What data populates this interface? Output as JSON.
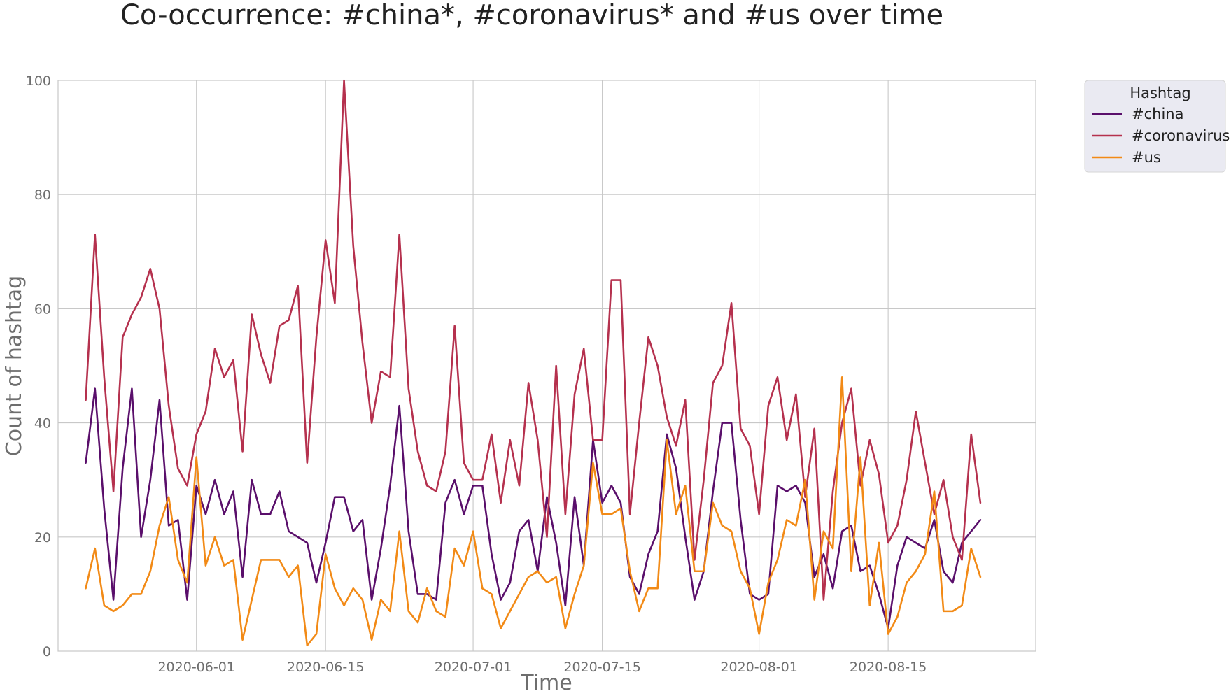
{
  "chart_data": {
    "type": "line",
    "title": "Co-occurrence: #china*, #coronavirus* and #us over time",
    "xlabel": "Time",
    "ylabel": "Count of hashtag",
    "x_start": "2020-05-20",
    "x_step_days": 1,
    "xlim": [
      "2020-05-17",
      "2020-08-31"
    ],
    "ylim": [
      0,
      100
    ],
    "xticks": [
      "2020-06-01",
      "2020-06-15",
      "2020-07-01",
      "2020-07-15",
      "2020-08-01",
      "2020-08-15"
    ],
    "yticks": [
      0,
      20,
      40,
      60,
      80,
      100
    ],
    "grid": true,
    "legend": {
      "title": "Hashtag",
      "placement": "outside top-right"
    },
    "series": [
      {
        "name": "#china",
        "color": "#5a0f6b",
        "values": [
          33,
          46,
          25,
          9,
          32,
          46,
          20,
          30,
          44,
          22,
          23,
          9,
          29,
          24,
          30,
          24,
          28,
          13,
          30,
          24,
          24,
          28,
          21,
          20,
          19,
          12,
          19,
          27,
          27,
          21,
          23,
          9,
          18,
          29,
          43,
          21,
          10,
          10,
          9,
          26,
          30,
          24,
          29,
          29,
          17,
          9,
          12,
          21,
          23,
          14,
          27,
          19,
          8,
          27,
          15,
          37,
          26,
          29,
          26,
          13,
          10,
          17,
          21,
          38,
          32,
          20,
          9,
          14,
          28,
          40,
          40,
          23,
          10,
          9,
          10,
          29,
          28,
          29,
          26,
          13,
          17,
          11,
          21,
          22,
          14,
          15,
          10,
          4,
          15,
          20,
          19,
          18,
          23,
          14,
          12,
          19,
          21,
          23
        ]
      },
      {
        "name": "#coronavirus",
        "color": "#b5314e",
        "values": [
          44,
          73,
          48,
          28,
          55,
          59,
          62,
          67,
          60,
          43,
          32,
          29,
          38,
          42,
          53,
          48,
          51,
          35,
          59,
          52,
          47,
          57,
          58,
          64,
          33,
          55,
          72,
          61,
          100,
          71,
          54,
          40,
          49,
          48,
          73,
          46,
          35,
          29,
          28,
          35,
          57,
          33,
          30,
          30,
          38,
          26,
          37,
          29,
          47,
          37,
          20,
          50,
          24,
          45,
          53,
          37,
          37,
          65,
          65,
          24,
          40,
          55,
          50,
          41,
          36,
          44,
          16,
          30,
          47,
          50,
          61,
          39,
          36,
          24,
          43,
          48,
          37,
          45,
          27,
          39,
          9,
          28,
          40,
          46,
          29,
          37,
          31,
          19,
          22,
          30,
          42,
          33,
          24,
          30,
          20,
          16,
          38,
          26
        ]
      },
      {
        "name": "#us",
        "color": "#f28a16",
        "values": [
          11,
          18,
          8,
          7,
          8,
          10,
          10,
          14,
          22,
          27,
          16,
          12,
          34,
          15,
          20,
          15,
          16,
          2,
          9,
          16,
          16,
          16,
          13,
          15,
          1,
          3,
          17,
          11,
          8,
          11,
          9,
          2,
          9,
          7,
          21,
          7,
          5,
          11,
          7,
          6,
          18,
          15,
          21,
          11,
          10,
          4,
          7,
          10,
          13,
          14,
          12,
          13,
          4,
          10,
          15,
          33,
          24,
          24,
          25,
          14,
          7,
          11,
          11,
          37,
          24,
          29,
          14,
          14,
          26,
          22,
          21,
          14,
          11,
          3,
          12,
          16,
          23,
          22,
          30,
          9,
          21,
          18,
          48,
          14,
          34,
          8,
          19,
          3,
          6,
          12,
          14,
          17,
          28,
          7,
          7,
          8,
          18,
          13
        ]
      }
    ]
  }
}
